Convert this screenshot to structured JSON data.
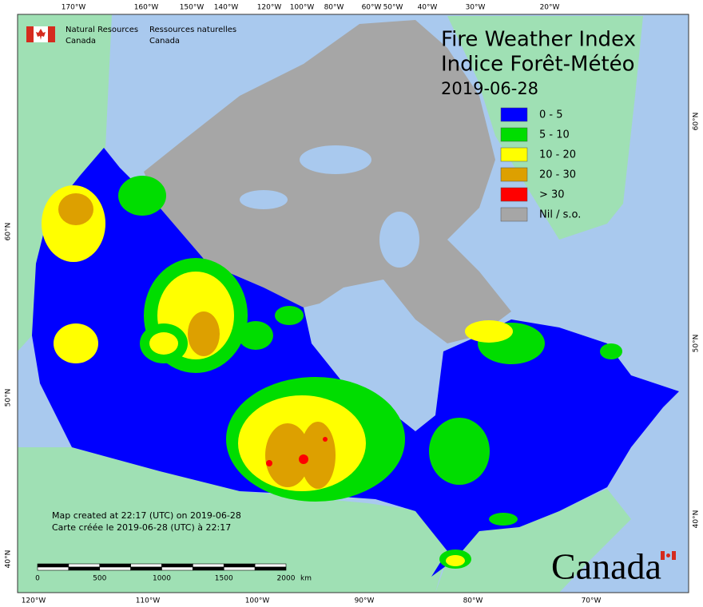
{
  "header": {
    "org_en": [
      "Natural Resources",
      "Canada"
    ],
    "org_fr": [
      "Ressources naturelles",
      "Canada"
    ]
  },
  "title": {
    "line1": "Fire Weather Index",
    "line2": "Indice Forêt-Météo",
    "date": "2019-06-28"
  },
  "legend": [
    {
      "label": "0 - 5",
      "color": "#0000ff"
    },
    {
      "label": "5 - 10",
      "color": "#00dd00"
    },
    {
      "label": "10 - 20",
      "color": "#ffff00"
    },
    {
      "label": "20 - 30",
      "color": "#dda000"
    },
    {
      "label": "> 30",
      "color": "#ff0000"
    },
    {
      "label": "Nil / s.o.",
      "color": "#a6a6a6"
    }
  ],
  "top_lon_labels": [
    "170°W",
    "160°W",
    "150°W",
    "140°W",
    "120°W",
    "100°W",
    "80°W",
    "60°W",
    "50°W",
    "40°W",
    "30°W",
    "20°W"
  ],
  "bottom_lon_labels": [
    "120°W",
    "110°W",
    "100°W",
    "90°W",
    "80°W",
    "70°W"
  ],
  "left_lat_labels": [
    "60°N",
    "50°N",
    "40°N"
  ],
  "right_lat_labels": [
    "60°N",
    "50°N",
    "40°N"
  ],
  "footer": {
    "created_en": "Map created at 22:17 (UTC) on 2019-06-28",
    "created_fr": "Carte créée le 2019-06-28 (UTC) à 22:17"
  },
  "scale": {
    "ticks": [
      "0",
      "500",
      "1000",
      "1500",
      "2000"
    ],
    "unit": "km"
  },
  "wordmark": "Canada"
}
